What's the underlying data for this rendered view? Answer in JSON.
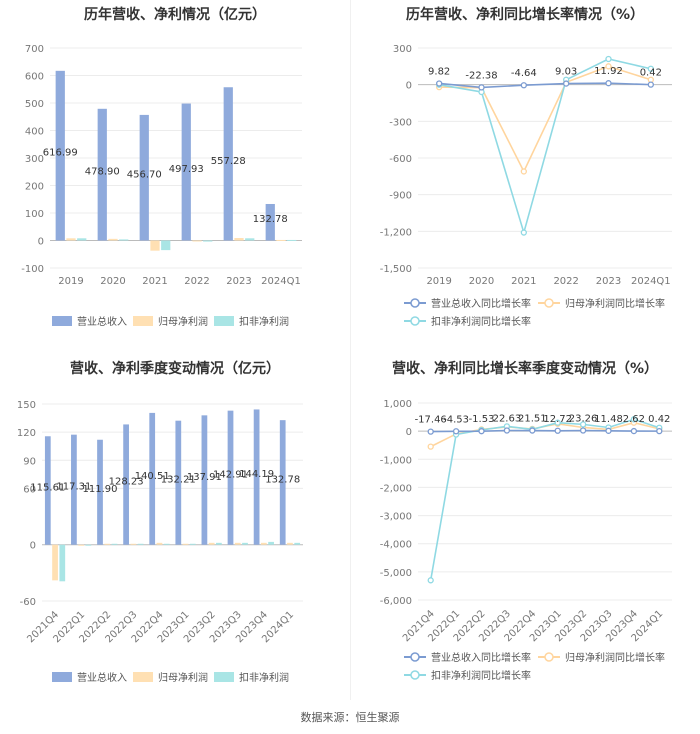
{
  "footer": "数据来源：恒生聚源",
  "colors": {
    "revenue": "#8faadc",
    "netProfit": "#ffe0b3",
    "deductProfit": "#a9e5e5",
    "revGrowth": "#7b9bd1",
    "npGrowth": "#ffd59e",
    "dpGrowth": "#8fd9e3"
  },
  "chart_data": [
    {
      "type": "bar",
      "title": "历年营收、净利情况（亿元）",
      "categories": [
        "2019",
        "2020",
        "2021",
        "2022",
        "2023",
        "2024Q1"
      ],
      "ylim": [
        -100,
        700
      ],
      "yticks": [
        -100,
        0,
        100,
        200,
        300,
        400,
        500,
        600,
        700
      ],
      "series": [
        {
          "name": "营业总收入",
          "values": [
            616.99,
            478.9,
            456.7,
            497.93,
            557.28,
            132.78
          ],
          "labels": [
            "616.99",
            "478.90",
            "456.70",
            "497.93",
            "557.28",
            "132.78"
          ]
        },
        {
          "name": "归母净利润",
          "values": [
            8,
            6,
            -37,
            -3,
            9,
            2
          ]
        },
        {
          "name": "扣非净利润",
          "values": [
            8,
            4,
            -35,
            -4,
            8,
            2
          ]
        }
      ],
      "legend": "bottom"
    },
    {
      "type": "line",
      "title": "历年营收、净利同比增长率情况（%）",
      "categories": [
        "2019",
        "2020",
        "2021",
        "2022",
        "2023",
        "2024Q1"
      ],
      "ylim": [
        -1500,
        300
      ],
      "yticks": [
        -1500,
        -1200,
        -900,
        -600,
        -300,
        0,
        300
      ],
      "series": [
        {
          "name": "营业总收入同比增长率",
          "values": [
            9.82,
            -22.38,
            -4.64,
            9.03,
            11.92,
            0.42
          ],
          "labels": [
            "9.82",
            "-22.38",
            "-4.64",
            "9.03",
            "11.92",
            "0.42"
          ]
        },
        {
          "name": "归母净利润同比增长率",
          "values": [
            -20,
            -25,
            -710,
            20,
            150,
            40
          ]
        },
        {
          "name": "扣非净利润同比增长率",
          "values": [
            0,
            -60,
            -1210,
            40,
            210,
            130
          ]
        }
      ],
      "legend": "bottom"
    },
    {
      "type": "bar",
      "title": "营收、净利季度变动情况（亿元）",
      "categories": [
        "2021Q4",
        "2022Q1",
        "2022Q2",
        "2022Q3",
        "2022Q4",
        "2023Q1",
        "2023Q2",
        "2023Q3",
        "2023Q4",
        "2024Q1"
      ],
      "ylim": [
        -60,
        150
      ],
      "yticks": [
        -60,
        0,
        60,
        90,
        120,
        150
      ],
      "series": [
        {
          "name": "营业总收入",
          "values": [
            115.61,
            117.31,
            111.9,
            128.23,
            140.51,
            132.21,
            137.91,
            142.91,
            144.19,
            132.78
          ],
          "labels": [
            "115.61",
            "117.31",
            "111.90",
            "128.23",
            "140.51",
            "132.21",
            "137.91",
            "142.91",
            "144.19",
            "132.78"
          ]
        },
        {
          "name": "归母净利润",
          "values": [
            -38,
            -1,
            1,
            1,
            2,
            1,
            2,
            2,
            2,
            2
          ]
        },
        {
          "name": "扣非净利润",
          "values": [
            -39,
            -1,
            1,
            1,
            1,
            1,
            2,
            2,
            3,
            2
          ]
        }
      ],
      "legend": "bottom"
    },
    {
      "type": "line",
      "title": "营收、净利同比增长率季度变动情况（%）",
      "categories": [
        "2021Q4",
        "2022Q1",
        "2022Q2",
        "2022Q3",
        "2022Q4",
        "2023Q1",
        "2023Q2",
        "2023Q3",
        "2023Q4",
        "2024Q1"
      ],
      "ylim": [
        -6000,
        1000
      ],
      "yticks": [
        -6000,
        -5000,
        -4000,
        -3000,
        -2000,
        -1000,
        0,
        1000
      ],
      "tickLabels": [
        "-6,000",
        "-5,000",
        "-4,000",
        "-3,000",
        "-2,000",
        "-1,000",
        "0",
        "1,000"
      ],
      "series": [
        {
          "name": "营业总收入同比增长率",
          "values": [
            -17.46,
            -4.53,
            -1.53,
            22.63,
            21.51,
            12.72,
            23.26,
            11.48,
            2.62,
            0.42
          ],
          "labels": [
            "-17.46",
            "-4.53",
            "-1.53",
            "22.63",
            "21.51",
            "12.72",
            "23.26",
            "11.48",
            "2.62",
            "0.42"
          ]
        },
        {
          "name": "归母净利润同比增长率",
          "values": [
            -550,
            -100,
            60,
            150,
            80,
            260,
            130,
            60,
            300,
            80
          ]
        },
        {
          "name": "扣非净利润同比增长率",
          "values": [
            -5300,
            -120,
            40,
            170,
            60,
            300,
            240,
            130,
            420,
            120
          ]
        }
      ],
      "legend": "bottom"
    }
  ]
}
